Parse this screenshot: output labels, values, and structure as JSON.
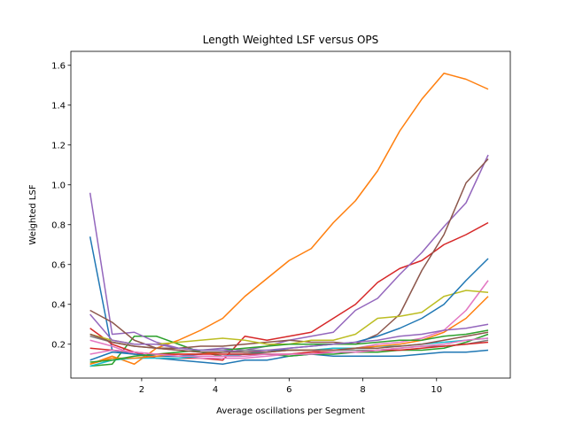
{
  "chart_data": {
    "type": "line",
    "title": "Length Weighted LSF versus OPS",
    "xlabel": "Average oscillations per Segment",
    "ylabel": "Weighted LSF",
    "xlim": [
      0.08,
      12.0
    ],
    "ylim": [
      0.03,
      1.67
    ],
    "xticks": [
      2,
      4,
      6,
      8,
      10
    ],
    "yticks": [
      0.2,
      0.4,
      0.6,
      0.8,
      1.0,
      1.2,
      1.4,
      1.6
    ],
    "xtick_labels": [
      "2",
      "4",
      "6",
      "8",
      "10"
    ],
    "ytick_labels": [
      "0.2",
      "0.4",
      "0.6",
      "0.8",
      "1.0",
      "1.2",
      "1.4",
      "1.6"
    ],
    "legend": "none",
    "grid": false,
    "x": [
      0.6,
      1.2,
      1.8,
      2.4,
      3.0,
      3.6,
      4.2,
      4.8,
      5.4,
      6.0,
      6.6,
      7.2,
      7.8,
      8.4,
      9.0,
      9.6,
      10.2,
      10.8,
      11.4
    ],
    "series": [
      {
        "color": "#1f77b4",
        "values": [
          0.74,
          0.17,
          0.15,
          0.13,
          0.12,
          0.11,
          0.1,
          0.12,
          0.12,
          0.14,
          0.15,
          0.14,
          0.14,
          0.14,
          0.14,
          0.15,
          0.16,
          0.16,
          0.17
        ]
      },
      {
        "color": "#ff7f0e",
        "values": [
          0.1,
          0.14,
          0.1,
          0.18,
          0.22,
          0.27,
          0.33,
          0.44,
          0.53,
          0.62,
          0.68,
          0.81,
          0.92,
          1.07,
          1.27,
          1.43,
          1.56,
          1.53,
          1.48
        ]
      },
      {
        "color": "#2ca02c",
        "values": [
          0.09,
          0.1,
          0.24,
          0.24,
          0.2,
          0.16,
          0.14,
          0.15,
          0.15,
          0.14,
          0.15,
          0.15,
          0.16,
          0.16,
          0.17,
          0.17,
          0.18,
          0.21,
          0.25
        ]
      },
      {
        "color": "#d62728",
        "values": [
          0.28,
          0.2,
          0.16,
          0.13,
          0.13,
          0.13,
          0.12,
          0.24,
          0.22,
          0.24,
          0.26,
          0.33,
          0.4,
          0.51,
          0.58,
          0.62,
          0.7,
          0.75,
          0.81
        ]
      },
      {
        "color": "#9467bd",
        "values": [
          0.96,
          0.25,
          0.26,
          0.21,
          0.18,
          0.17,
          0.18,
          0.17,
          0.19,
          0.22,
          0.24,
          0.26,
          0.37,
          0.43,
          0.55,
          0.66,
          0.79,
          0.91,
          1.15
        ]
      },
      {
        "color": "#8c564b",
        "values": [
          0.37,
          0.31,
          0.22,
          0.18,
          0.18,
          0.19,
          0.19,
          0.2,
          0.21,
          0.22,
          0.21,
          0.21,
          0.2,
          0.25,
          0.35,
          0.57,
          0.75,
          1.01,
          1.13
        ]
      },
      {
        "color": "#e377c2",
        "values": [
          0.22,
          0.19,
          0.15,
          0.14,
          0.14,
          0.13,
          0.13,
          0.13,
          0.14,
          0.15,
          0.16,
          0.18,
          0.18,
          0.2,
          0.21,
          0.23,
          0.27,
          0.37,
          0.52
        ]
      },
      {
        "color": "#7f7f7f",
        "values": [
          0.24,
          0.21,
          0.19,
          0.18,
          0.17,
          0.16,
          0.16,
          0.17,
          0.17,
          0.17,
          0.17,
          0.17,
          0.17,
          0.17,
          0.18,
          0.19,
          0.19,
          0.2,
          0.22
        ]
      },
      {
        "color": "#bcbd22",
        "values": [
          0.25,
          0.22,
          0.2,
          0.2,
          0.21,
          0.22,
          0.23,
          0.22,
          0.2,
          0.2,
          0.22,
          0.22,
          0.25,
          0.33,
          0.34,
          0.36,
          0.44,
          0.47,
          0.46
        ]
      },
      {
        "color": "#17becf",
        "values": [
          0.09,
          0.12,
          0.13,
          0.13,
          0.13,
          0.14,
          0.14,
          0.15,
          0.16,
          0.17,
          0.17,
          0.18,
          0.18,
          0.19,
          0.19,
          0.2,
          0.21,
          0.22,
          0.23
        ]
      },
      {
        "color": "#1f77b4",
        "values": [
          0.12,
          0.16,
          0.15,
          0.14,
          0.14,
          0.15,
          0.16,
          0.16,
          0.16,
          0.18,
          0.19,
          0.2,
          0.21,
          0.24,
          0.28,
          0.33,
          0.4,
          0.52,
          0.63
        ]
      },
      {
        "color": "#ff7f0e",
        "values": [
          0.1,
          0.13,
          0.13,
          0.14,
          0.15,
          0.15,
          0.16,
          0.16,
          0.16,
          0.17,
          0.17,
          0.17,
          0.18,
          0.19,
          0.2,
          0.22,
          0.26,
          0.33,
          0.44
        ]
      },
      {
        "color": "#2ca02c",
        "values": [
          0.11,
          0.12,
          0.14,
          0.15,
          0.16,
          0.17,
          0.17,
          0.18,
          0.19,
          0.2,
          0.2,
          0.2,
          0.2,
          0.21,
          0.22,
          0.22,
          0.24,
          0.25,
          0.27
        ]
      },
      {
        "color": "#d62728",
        "values": [
          0.18,
          0.17,
          0.16,
          0.15,
          0.15,
          0.15,
          0.15,
          0.15,
          0.15,
          0.15,
          0.16,
          0.16,
          0.16,
          0.17,
          0.17,
          0.18,
          0.19,
          0.2,
          0.21
        ]
      },
      {
        "color": "#9467bd",
        "values": [
          0.35,
          0.22,
          0.2,
          0.2,
          0.18,
          0.17,
          0.17,
          0.16,
          0.17,
          0.18,
          0.19,
          0.2,
          0.21,
          0.22,
          0.24,
          0.25,
          0.27,
          0.28,
          0.3
        ]
      },
      {
        "color": "#8c564b",
        "values": [
          0.25,
          0.21,
          0.19,
          0.18,
          0.17,
          0.16,
          0.16,
          0.16,
          0.16,
          0.17,
          0.17,
          0.17,
          0.18,
          0.18,
          0.19,
          0.2,
          0.22,
          0.24,
          0.26
        ]
      },
      {
        "color": "#e377c2",
        "values": [
          0.15,
          0.17,
          0.16,
          0.15,
          0.14,
          0.14,
          0.14,
          0.14,
          0.15,
          0.15,
          0.15,
          0.16,
          0.16,
          0.17,
          0.18,
          0.19,
          0.2,
          0.22,
          0.23
        ]
      }
    ]
  }
}
